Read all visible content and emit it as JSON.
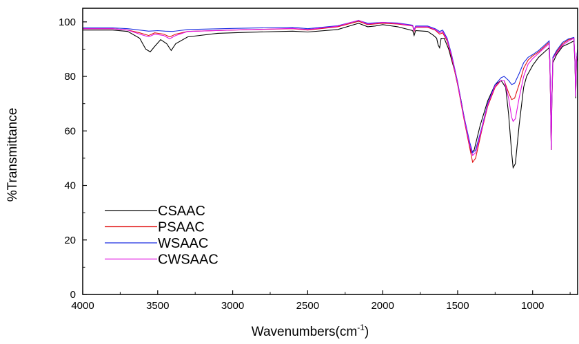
{
  "chart_data": {
    "type": "line",
    "title": "",
    "xlabel": "Wavenumbers(cm",
    "xlabel_superscript": "-1",
    "xlabel_suffix": ")",
    "ylabel": "%Transmittance",
    "xlim": [
      4000,
      700
    ],
    "x_reversed": true,
    "ylim": [
      0,
      105
    ],
    "x_ticks": [
      4000,
      3500,
      3000,
      2500,
      2000,
      1500,
      1000
    ],
    "y_ticks": [
      0,
      20,
      40,
      60,
      80,
      100
    ],
    "grid": false,
    "legend_position": "bottom-left",
    "series": [
      {
        "name": "CSAAC",
        "color": "#000000",
        "points": [
          [
            4000,
            97
          ],
          [
            3800,
            97
          ],
          [
            3700,
            96.5
          ],
          [
            3620,
            94
          ],
          [
            3580,
            90
          ],
          [
            3550,
            89
          ],
          [
            3520,
            91
          ],
          [
            3480,
            93.5
          ],
          [
            3440,
            92
          ],
          [
            3410,
            89.5
          ],
          [
            3380,
            92
          ],
          [
            3300,
            94.5
          ],
          [
            3100,
            95.8
          ],
          [
            2900,
            96.2
          ],
          [
            2600,
            96.6
          ],
          [
            2500,
            96.3
          ],
          [
            2300,
            97.2
          ],
          [
            2160,
            99.5
          ],
          [
            2100,
            98.2
          ],
          [
            2050,
            98.5
          ],
          [
            2000,
            99
          ],
          [
            1900,
            98.2
          ],
          [
            1800,
            96.8
          ],
          [
            1790,
            95
          ],
          [
            1780,
            96.8
          ],
          [
            1700,
            96.5
          ],
          [
            1660,
            95
          ],
          [
            1640,
            94
          ],
          [
            1630,
            91.5
          ],
          [
            1620,
            90.5
          ],
          [
            1610,
            94
          ],
          [
            1590,
            94
          ],
          [
            1560,
            90
          ],
          [
            1520,
            82
          ],
          [
            1480,
            72
          ],
          [
            1440,
            60
          ],
          [
            1410,
            52
          ],
          [
            1390,
            53
          ],
          [
            1350,
            62
          ],
          [
            1300,
            71
          ],
          [
            1250,
            77
          ],
          [
            1210,
            78.5
          ],
          [
            1180,
            76
          ],
          [
            1160,
            66
          ],
          [
            1140,
            52
          ],
          [
            1130,
            46.5
          ],
          [
            1115,
            48
          ],
          [
            1090,
            62
          ],
          [
            1060,
            76
          ],
          [
            1040,
            80
          ],
          [
            1020,
            82
          ],
          [
            1000,
            84
          ],
          [
            960,
            87
          ],
          [
            920,
            89
          ],
          [
            890,
            90.5
          ],
          [
            885,
            85
          ],
          [
            880,
            70
          ],
          [
            876,
            53
          ],
          [
            872,
            70
          ],
          [
            865,
            85
          ],
          [
            840,
            88
          ],
          [
            800,
            91
          ],
          [
            760,
            92
          ],
          [
            725,
            93
          ],
          [
            718,
            85
          ],
          [
            713,
            72
          ],
          [
            708,
            85
          ],
          [
            700,
            88
          ]
        ]
      },
      {
        "name": "PSAAC",
        "color": "#e01010",
        "points": [
          [
            4000,
            97.5
          ],
          [
            3800,
            97.5
          ],
          [
            3700,
            97
          ],
          [
            3620,
            96
          ],
          [
            3560,
            95
          ],
          [
            3520,
            96
          ],
          [
            3460,
            95.5
          ],
          [
            3420,
            94.5
          ],
          [
            3380,
            95.5
          ],
          [
            3300,
            96.5
          ],
          [
            3000,
            97
          ],
          [
            2600,
            97.5
          ],
          [
            2500,
            97
          ],
          [
            2300,
            98.2
          ],
          [
            2160,
            100.2
          ],
          [
            2100,
            99
          ],
          [
            2000,
            99.5
          ],
          [
            1900,
            99.2
          ],
          [
            1800,
            98.5
          ],
          [
            1790,
            96.5
          ],
          [
            1780,
            98
          ],
          [
            1700,
            98
          ],
          [
            1650,
            97
          ],
          [
            1620,
            95.5
          ],
          [
            1600,
            96
          ],
          [
            1570,
            93
          ],
          [
            1540,
            87
          ],
          [
            1500,
            77
          ],
          [
            1460,
            65
          ],
          [
            1420,
            54
          ],
          [
            1400,
            48.5
          ],
          [
            1380,
            50
          ],
          [
            1340,
            60
          ],
          [
            1300,
            69
          ],
          [
            1250,
            76
          ],
          [
            1210,
            78.5
          ],
          [
            1190,
            78.5
          ],
          [
            1160,
            74
          ],
          [
            1140,
            71.5
          ],
          [
            1120,
            72
          ],
          [
            1090,
            77
          ],
          [
            1060,
            83
          ],
          [
            1030,
            86
          ],
          [
            1000,
            87.5
          ],
          [
            960,
            89
          ],
          [
            920,
            91
          ],
          [
            890,
            92.5
          ],
          [
            885,
            85
          ],
          [
            880,
            70
          ],
          [
            876,
            53.5
          ],
          [
            872,
            70
          ],
          [
            865,
            87
          ],
          [
            840,
            89
          ],
          [
            800,
            92
          ],
          [
            760,
            93.5
          ],
          [
            725,
            94
          ],
          [
            718,
            86
          ],
          [
            713,
            73
          ],
          [
            708,
            86
          ],
          [
            700,
            90
          ]
        ]
      },
      {
        "name": "WSAAC",
        "color": "#1a2ce0",
        "points": [
          [
            4000,
            97.8
          ],
          [
            3800,
            97.8
          ],
          [
            3700,
            97.5
          ],
          [
            3620,
            97
          ],
          [
            3560,
            96.6
          ],
          [
            3500,
            96.8
          ],
          [
            3450,
            96.6
          ],
          [
            3400,
            96.5
          ],
          [
            3300,
            97.2
          ],
          [
            3000,
            97.6
          ],
          [
            2600,
            98
          ],
          [
            2500,
            97.5
          ],
          [
            2300,
            98.6
          ],
          [
            2160,
            100.5
          ],
          [
            2100,
            99.5
          ],
          [
            2000,
            99.8
          ],
          [
            1900,
            99.6
          ],
          [
            1800,
            98.8
          ],
          [
            1790,
            97
          ],
          [
            1780,
            98.5
          ],
          [
            1700,
            98.5
          ],
          [
            1650,
            97.5
          ],
          [
            1620,
            96.5
          ],
          [
            1600,
            97
          ],
          [
            1570,
            94
          ],
          [
            1540,
            88
          ],
          [
            1500,
            78
          ],
          [
            1460,
            66
          ],
          [
            1420,
            56
          ],
          [
            1400,
            52
          ],
          [
            1380,
            53
          ],
          [
            1340,
            61
          ],
          [
            1300,
            70
          ],
          [
            1250,
            77
          ],
          [
            1210,
            79.5
          ],
          [
            1190,
            80
          ],
          [
            1160,
            78.5
          ],
          [
            1140,
            77
          ],
          [
            1120,
            77.5
          ],
          [
            1090,
            81
          ],
          [
            1060,
            85
          ],
          [
            1030,
            87
          ],
          [
            1000,
            88
          ],
          [
            960,
            89.5
          ],
          [
            920,
            91.5
          ],
          [
            890,
            93
          ],
          [
            885,
            86
          ],
          [
            880,
            71
          ],
          [
            876,
            54
          ],
          [
            872,
            71
          ],
          [
            865,
            87
          ],
          [
            840,
            89.5
          ],
          [
            800,
            92.5
          ],
          [
            760,
            93.8
          ],
          [
            725,
            94.3
          ],
          [
            718,
            86
          ],
          [
            713,
            73
          ],
          [
            708,
            86
          ],
          [
            700,
            90
          ]
        ]
      },
      {
        "name": "CWSAAC",
        "color": "#e010e0",
        "points": [
          [
            4000,
            97.5
          ],
          [
            3800,
            97.5
          ],
          [
            3700,
            97
          ],
          [
            3620,
            95.5
          ],
          [
            3560,
            94.5
          ],
          [
            3520,
            95.5
          ],
          [
            3460,
            95
          ],
          [
            3420,
            93.8
          ],
          [
            3380,
            95
          ],
          [
            3300,
            96.5
          ],
          [
            3000,
            97
          ],
          [
            2600,
            97.6
          ],
          [
            2500,
            97.2
          ],
          [
            2300,
            98.4
          ],
          [
            2160,
            100.6
          ],
          [
            2100,
            99.2
          ],
          [
            2000,
            99.8
          ],
          [
            1900,
            99.4
          ],
          [
            1800,
            98.6
          ],
          [
            1790,
            96.8
          ],
          [
            1780,
            98.2
          ],
          [
            1700,
            98.2
          ],
          [
            1650,
            97.2
          ],
          [
            1620,
            96
          ],
          [
            1600,
            96.5
          ],
          [
            1570,
            93.5
          ],
          [
            1540,
            87.5
          ],
          [
            1500,
            77.5
          ],
          [
            1460,
            65.5
          ],
          [
            1420,
            55
          ],
          [
            1400,
            51
          ],
          [
            1380,
            52
          ],
          [
            1340,
            60.5
          ],
          [
            1300,
            69.5
          ],
          [
            1250,
            76.5
          ],
          [
            1210,
            78.5
          ],
          [
            1190,
            78.5
          ],
          [
            1160,
            72
          ],
          [
            1140,
            65
          ],
          [
            1130,
            63.5
          ],
          [
            1115,
            64.5
          ],
          [
            1090,
            72
          ],
          [
            1060,
            80
          ],
          [
            1030,
            84.5
          ],
          [
            1000,
            86.5
          ],
          [
            960,
            88.5
          ],
          [
            920,
            90.5
          ],
          [
            890,
            92
          ],
          [
            885,
            85
          ],
          [
            880,
            70
          ],
          [
            876,
            53
          ],
          [
            872,
            70
          ],
          [
            865,
            86.5
          ],
          [
            840,
            88.5
          ],
          [
            800,
            91.5
          ],
          [
            760,
            93
          ],
          [
            725,
            94
          ],
          [
            718,
            86
          ],
          [
            713,
            72.5
          ],
          [
            708,
            86
          ],
          [
            700,
            89
          ]
        ]
      }
    ]
  }
}
